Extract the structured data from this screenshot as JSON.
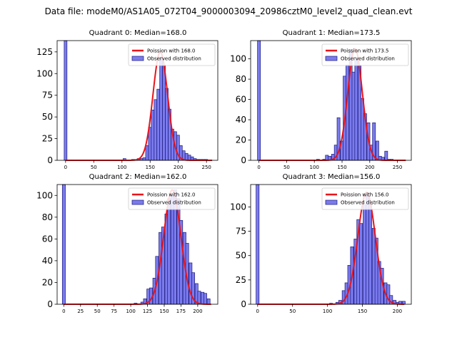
{
  "suptitle": "Data file: modeM0/AS1A05_072T04_9000003094_20986cztM0_level2_quad_clean.evt",
  "colors": {
    "bar_fill": "#7b7bef",
    "bar_edge": "#1a1a7a",
    "curve": "#e8141b"
  },
  "chart_data": [
    {
      "type": "bar",
      "title": "Quadrant 0: Median=168.0",
      "xlim": [
        -15,
        270
      ],
      "ylim": [
        0,
        138
      ],
      "xticks": [
        0,
        50,
        100,
        150,
        200,
        250
      ],
      "yticks": [
        0,
        25,
        50,
        75,
        100,
        125
      ],
      "bin_width": 5.0,
      "bar_left_edges": [
        -2.5,
        102,
        107,
        117,
        122,
        127,
        132,
        137,
        142,
        147,
        152,
        157,
        162,
        167,
        172,
        177,
        182,
        187,
        192,
        197,
        202,
        207,
        212,
        217,
        222,
        227,
        232,
        237,
        242,
        247
      ],
      "bar_heights": [
        138,
        2,
        0,
        1,
        1,
        2,
        2,
        3,
        17,
        38,
        58,
        70,
        82,
        119,
        110,
        83,
        59,
        36,
        33,
        29,
        17,
        11,
        8,
        6,
        4,
        2,
        1,
        1,
        1,
        1
      ],
      "curve_mu": 168.0,
      "curve_peak": 125,
      "curve_xrange": [
        0,
        260
      ],
      "legend": [
        "Poission with 168.0",
        "Observed distribution"
      ]
    },
    {
      "type": "bar",
      "title": "Quadrant 1: Median=173.5",
      "xlim": [
        -15,
        275
      ],
      "ylim": [
        0,
        118
      ],
      "xticks": [
        0,
        50,
        100,
        150,
        200,
        250
      ],
      "yticks": [
        0,
        20,
        40,
        60,
        80,
        100
      ],
      "bin_width": 5.3,
      "bar_left_edges": [
        -2.6,
        104,
        115,
        120,
        125,
        131,
        136,
        141,
        147,
        152,
        157,
        163,
        168,
        173,
        179,
        184,
        189,
        195,
        200,
        205,
        211,
        216,
        221,
        227,
        232,
        237
      ],
      "bar_heights": [
        118,
        1,
        1,
        5,
        4,
        6,
        15,
        42,
        19,
        83,
        94,
        109,
        87,
        100,
        93,
        61,
        46,
        37,
        15,
        37,
        19,
        4,
        3,
        9,
        1,
        1
      ],
      "curve_mu": 173.5,
      "curve_peak": 110,
      "curve_xrange": [
        0,
        265
      ],
      "legend": [
        "Poission with 173.5",
        "Observed distribution"
      ]
    },
    {
      "type": "bar",
      "title": "Quadrant 2: Median=162.0",
      "xlim": [
        -10,
        230
      ],
      "ylim": [
        0,
        110
      ],
      "xticks": [
        0,
        25,
        50,
        75,
        100,
        125,
        150,
        175,
        200
      ],
      "yticks": [
        0,
        20,
        40,
        60,
        80,
        100
      ],
      "bin_width": 4.5,
      "bar_left_edges": [
        -2.2,
        105,
        115,
        119,
        124,
        128,
        133,
        137,
        142,
        146,
        151,
        155,
        160,
        164,
        169,
        173,
        178,
        182,
        187,
        191,
        196,
        200,
        205,
        209,
        214
      ],
      "bar_heights": [
        110,
        1,
        2,
        5,
        14,
        15,
        24,
        44,
        66,
        71,
        83,
        97,
        100,
        105,
        97,
        77,
        66,
        56,
        38,
        29,
        19,
        12,
        11,
        10,
        5
      ],
      "curve_mu": 162.0,
      "curve_peak": 105,
      "curve_xrange": [
        0,
        220
      ],
      "legend": [
        "Poission with 162.0",
        "Observed distribution"
      ]
    },
    {
      "type": "bar",
      "title": "Quadrant 3: Median=156.0",
      "xlim": [
        -10,
        220
      ],
      "ylim": [
        0,
        123
      ],
      "xticks": [
        0,
        50,
        100,
        150,
        200
      ],
      "yticks": [
        0,
        25,
        50,
        75,
        100
      ],
      "bin_width": 4.3,
      "bar_left_edges": [
        -2.2,
        103,
        112,
        116,
        121,
        125,
        129,
        133,
        138,
        142,
        146,
        151,
        155,
        159,
        164,
        168,
        172,
        176,
        181,
        185,
        189,
        194,
        198,
        202,
        207
      ],
      "bar_heights": [
        123,
        1,
        2,
        4,
        14,
        22,
        40,
        59,
        67,
        87,
        83,
        102,
        112,
        105,
        78,
        68,
        44,
        37,
        22,
        20,
        9,
        4,
        2,
        3,
        3
      ],
      "curve_mu": 156.0,
      "curve_peak": 115,
      "curve_xrange": [
        0,
        210
      ],
      "legend": [
        "Poission with 156.0",
        "Observed distribution"
      ]
    }
  ]
}
